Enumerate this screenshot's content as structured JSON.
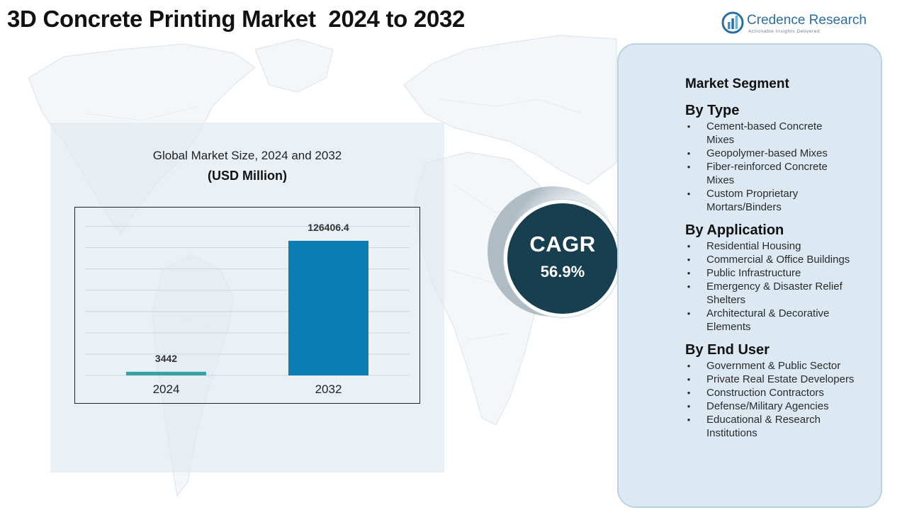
{
  "title": "3D Concrete Printing Market  2024 to 2032",
  "brand": {
    "name": "Credence Research",
    "tagline": "Actionable Insights Delivered",
    "icon": "bar-chart-logo-icon"
  },
  "chart_data": {
    "type": "bar",
    "title": "Global Market Size, 2024 and 2032",
    "subtitle": "(USD Million)",
    "categories": [
      "2024",
      "2032"
    ],
    "values": [
      3442,
      126406.4
    ],
    "value_labels": [
      "3442",
      "126406.4"
    ],
    "colors": [
      "#35a3a3",
      "#0b7db3"
    ],
    "xlabel": "",
    "ylabel": "",
    "ylim": [
      0,
      145000
    ],
    "grid": true,
    "legend": "none"
  },
  "cagr": {
    "label": "CAGR",
    "value": "56.9%"
  },
  "segments": {
    "heading": "Market Segment",
    "groups": [
      {
        "title": "By Type",
        "items": [
          [
            "Cement-based Concrete",
            "Mixes"
          ],
          [
            "Geopolymer-based Mixes"
          ],
          [
            "Fiber-reinforced Concrete",
            "Mixes"
          ],
          [
            "Custom Proprietary",
            "Mortars/Binders"
          ]
        ]
      },
      {
        "title": "By Application",
        "items": [
          [
            "Residential Housing"
          ],
          [
            "Commercial & Office Buildings"
          ],
          [
            "Public Infrastructure"
          ],
          [
            "Emergency & Disaster Relief",
            "Shelters"
          ],
          [
            "Architectural & Decorative",
            "Elements"
          ]
        ]
      },
      {
        "title": "By End User",
        "items": [
          [
            "Government & Public Sector"
          ],
          [
            "Private Real Estate Developers"
          ],
          [
            "Construction Contractors"
          ],
          [
            "Defense/Military Agencies"
          ],
          [
            "Educational & Research",
            "Institutions"
          ]
        ]
      }
    ]
  }
}
